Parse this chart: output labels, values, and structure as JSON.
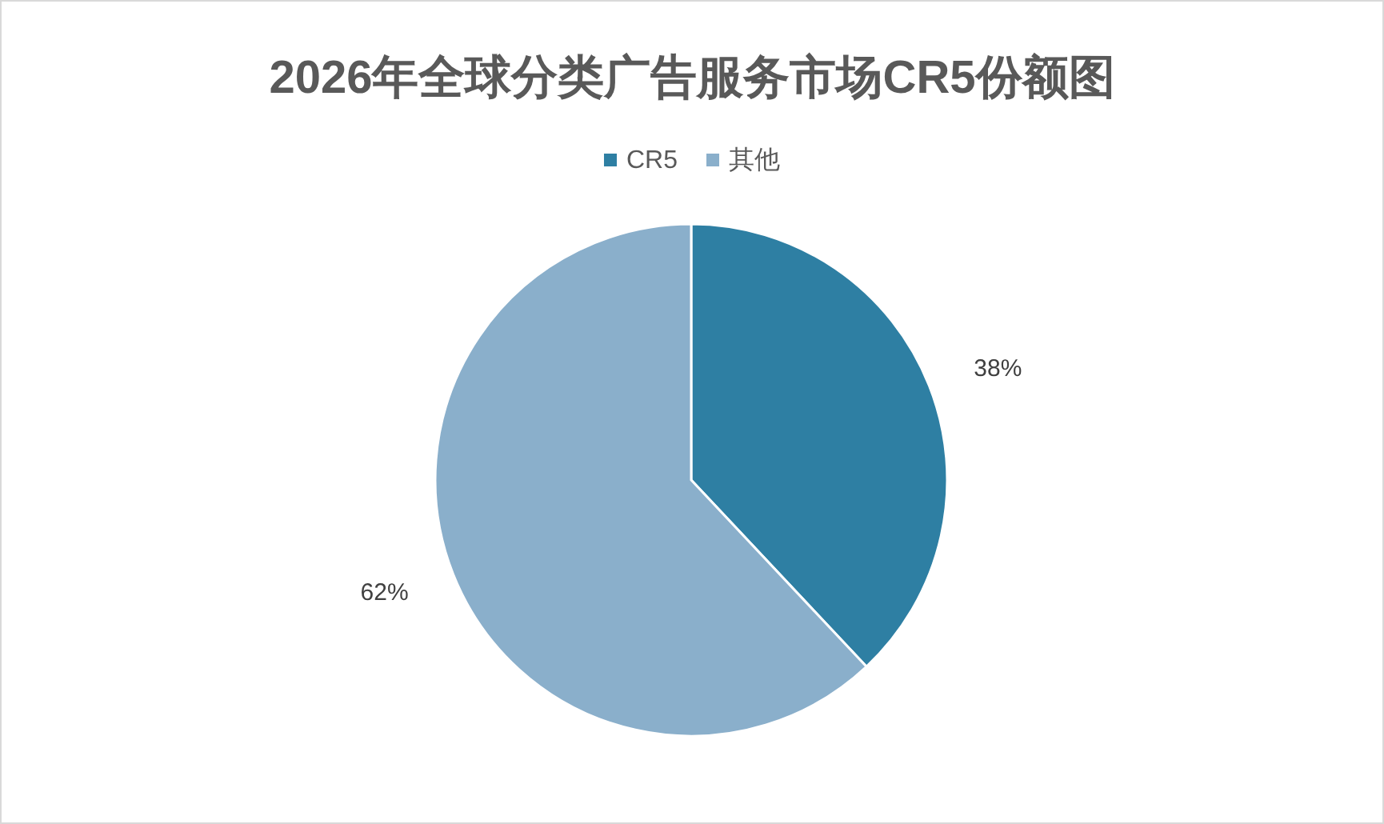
{
  "chart_data": {
    "type": "pie",
    "title": "2026年全球分类广告服务市场CR5份额图",
    "categories": [
      "CR5",
      "其他"
    ],
    "values": [
      38,
      62
    ],
    "colors": [
      "#2e7fa3",
      "#8aafcb"
    ],
    "value_labels": [
      "38%",
      "62%"
    ],
    "legend": "top"
  }
}
